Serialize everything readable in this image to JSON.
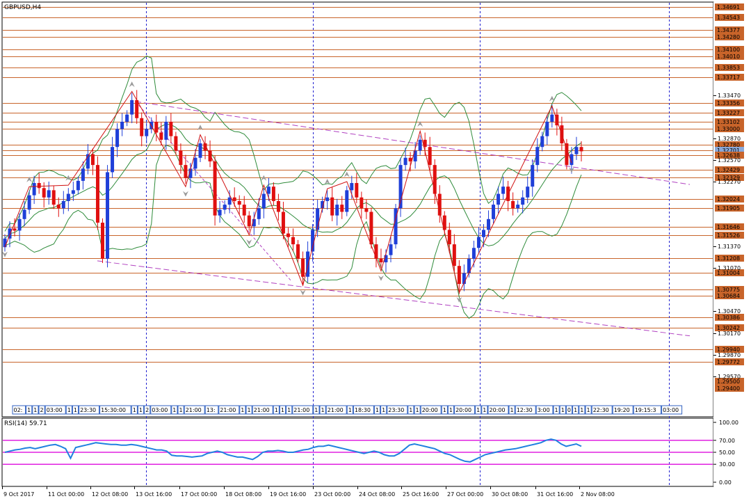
{
  "header": {
    "symbol_label": "GBPUSD,H4"
  },
  "colors": {
    "bull": "#1f3fd8",
    "bear": "#e01010",
    "level": "#c8642a",
    "level_tag": "#c8642a",
    "band": "#2e8b3a",
    "zigzag": "#d01010",
    "trend": "#b040c0",
    "rsi_line": "#2080e0",
    "rsi_level": "#e020e0",
    "grid": "#2020d0"
  },
  "price_axis": {
    "min": 1.2921,
    "max": 1.3475,
    "tick_labels": [
      "1.33470",
      "1.32870",
      "1.32570",
      "1.32270",
      "1.31370",
      "1.31070",
      "1.30470",
      "1.30170",
      "1.29870",
      "1.29570"
    ],
    "level_tags": [
      "1.34691",
      "1.34543",
      "1.34377",
      "1.34280",
      "1.34100",
      "1.34010",
      "1.33853",
      "1.33717",
      "1.33356",
      "1.33227",
      "1.33102",
      "1.33000",
      "1.32780",
      "1.32701",
      "1.32638",
      "1.32429",
      "1.32329",
      "1.32024",
      "1.31905",
      "1.31646",
      "1.31526",
      "1.31208",
      "1.31004",
      "1.30775",
      "1.30684",
      "1.30386",
      "1.30242",
      "1.29940",
      "1.29772",
      "1.29500",
      "1.29400"
    ]
  },
  "session_strip": {
    "labels": [
      "02:",
      "1",
      "1",
      "2",
      "03:00",
      "1",
      "1",
      "23:30",
      "15:30:00",
      "1",
      "1",
      "2",
      "03:00",
      "1",
      "1",
      "21:00",
      "13:",
      "21:00",
      "1",
      "1",
      "21:00",
      "1",
      "1",
      "1",
      "21:00",
      "1",
      "1",
      "21:00",
      "1",
      "18:30",
      "1",
      "1",
      "23:30",
      "1",
      "1",
      "20:00",
      "1",
      "1",
      "20:00",
      "1",
      "1",
      "20:00",
      "1",
      "12:30",
      "3:00",
      "1",
      "1",
      "0",
      "1",
      "1",
      "1",
      "22:30",
      "19:20",
      "19:15:3",
      "03:00"
    ]
  },
  "time_axis": {
    "labels": [
      "9 Oct 2017",
      "11 Oct 00:00",
      "12 Oct 08:00",
      "13 Oct 16:00",
      "17 Oct 00:00",
      "18 Oct 08:00",
      "19 Oct 16:00",
      "23 Oct 00:00",
      "24 Oct 08:00",
      "25 Oct 16:00",
      "27 Oct 00:00",
      "30 Oct 08:00",
      "31 Oct 16:00",
      "2 Nov 08:00"
    ]
  },
  "rsi": {
    "label": "RSI(14) 59.71",
    "levels": [
      70,
      50,
      30
    ],
    "tick_labels": [
      "100.00",
      "70.00",
      "50.00",
      "30.00",
      "0.00"
    ]
  },
  "chart_data": {
    "type": "candlestick",
    "symbol": "GBPUSD",
    "timeframe": "H4",
    "ylim": [
      1.2921,
      1.3475
    ],
    "horizontal_levels": [
      1.34691,
      1.34543,
      1.34377,
      1.3428,
      1.341,
      1.3401,
      1.33853,
      1.33717,
      1.33356,
      1.33227,
      1.33102,
      1.33,
      1.3278,
      1.32701,
      1.32638,
      1.32429,
      1.32329,
      1.32024,
      1.31905,
      1.31646,
      1.31526,
      1.31208,
      1.31004,
      1.30775,
      1.30684,
      1.30386,
      1.30242,
      1.2994,
      1.29772
    ],
    "candles_close": [
      1.3148,
      1.3162,
      1.3159,
      1.3175,
      1.3188,
      1.3208,
      1.3225,
      1.3218,
      1.3205,
      1.3215,
      1.3195,
      1.319,
      1.32,
      1.321,
      1.3215,
      1.3228,
      1.3245,
      1.3265,
      1.325,
      1.317,
      1.312,
      1.324,
      1.3275,
      1.33,
      1.331,
      1.332,
      1.334,
      1.3315,
      1.329,
      1.33,
      1.331,
      1.3295,
      1.3285,
      1.331,
      1.329,
      1.327,
      1.325,
      1.3232,
      1.3245,
      1.326,
      1.328,
      1.327,
      1.3255,
      1.318,
      1.3188,
      1.3195,
      1.3205,
      1.32,
      1.3195,
      1.318,
      1.3165,
      1.3175,
      1.319,
      1.321,
      1.322,
      1.32,
      1.3185,
      1.3155,
      1.315,
      1.314,
      1.312,
      1.3095,
      1.313,
      1.316,
      1.319,
      1.32,
      1.3205,
      1.318,
      1.3195,
      1.3185,
      1.3215,
      1.3225,
      1.3205,
      1.319,
      1.3185,
      1.314,
      1.312,
      1.3115,
      1.3125,
      1.314,
      1.319,
      1.325,
      1.326,
      1.3255,
      1.327,
      1.3285,
      1.3275,
      1.325,
      1.321,
      1.318,
      1.316,
      1.314,
      1.311,
      1.3085,
      1.31,
      1.312,
      1.3135,
      1.315,
      1.316,
      1.3175,
      1.3195,
      1.321,
      1.322,
      1.32,
      1.319,
      1.3195,
      1.3205,
      1.322,
      1.325,
      1.3275,
      1.329,
      1.331,
      1.332,
      1.3305,
      1.328,
      1.325,
      1.3265,
      1.3275,
      1.3269
    ],
    "rsi_values": [
      50,
      52,
      54,
      55,
      57,
      58,
      56,
      58,
      60,
      62,
      63,
      60,
      56,
      40,
      58,
      60,
      62,
      64,
      66,
      65,
      64,
      63,
      63,
      62,
      62,
      63,
      62,
      60,
      58,
      56,
      54,
      54,
      52,
      45,
      44,
      44,
      43,
      42,
      43,
      44,
      48,
      50,
      52,
      50,
      46,
      44,
      42,
      42,
      40,
      38,
      43,
      50,
      52,
      52,
      53,
      52,
      50,
      50,
      52,
      54,
      55,
      58,
      60,
      60,
      62,
      60,
      58,
      56,
      54,
      52,
      50,
      48,
      50,
      52,
      50,
      46,
      44,
      44,
      48,
      55,
      62,
      64,
      62,
      60,
      58,
      56,
      52,
      48,
      46,
      42,
      38,
      35,
      34,
      38,
      42,
      46,
      48,
      50,
      52,
      54,
      55,
      56,
      58,
      60,
      62,
      64,
      66,
      70,
      72,
      70,
      64,
      60,
      62,
      64,
      60
    ]
  }
}
